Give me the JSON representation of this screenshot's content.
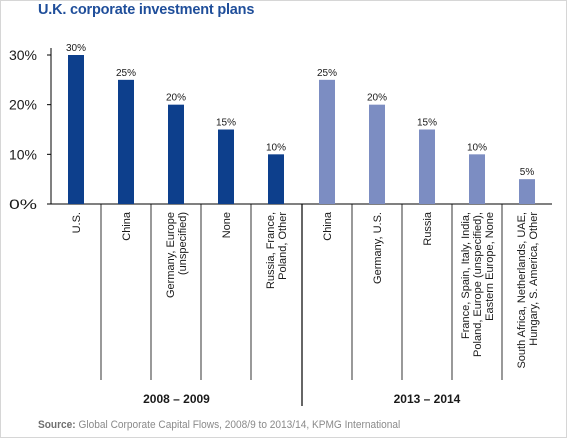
{
  "title": "U.K. corporate investment plans",
  "source": {
    "label": "Source:",
    "text": "Global Corporate Capital Flows, 2008/9 to 2013/14, KPMG International"
  },
  "colors": {
    "series_2008_2009": "#0d3f8c",
    "series_2013_2014": "#7c8dc2",
    "title": "#1f4e9a",
    "text": "#1a1a1a",
    "source": "#8a8a8a"
  },
  "chart_data": {
    "type": "bar",
    "ylim": [
      0,
      30
    ],
    "yticks": [
      "0%",
      "10%",
      "20%",
      "30%"
    ],
    "ytick_values": [
      0,
      10,
      20,
      30
    ],
    "grid": false,
    "groups": [
      {
        "name": "2008 – 2009",
        "color": "#0d3f8c",
        "bars": [
          {
            "category": [
              "U.S."
            ],
            "value": 30,
            "label": "30%"
          },
          {
            "category": [
              "China"
            ],
            "value": 25,
            "label": "25%"
          },
          {
            "category": [
              "Germany, Europe",
              "(unspecified)"
            ],
            "value": 20,
            "label": "20%"
          },
          {
            "category": [
              "None"
            ],
            "value": 15,
            "label": "15%"
          },
          {
            "category": [
              "Russia, France,",
              "Poland, Other"
            ],
            "value": 10,
            "label": "10%"
          }
        ]
      },
      {
        "name": "2013 – 2014",
        "color": "#7c8dc2",
        "bars": [
          {
            "category": [
              "China"
            ],
            "value": 25,
            "label": "25%"
          },
          {
            "category": [
              "Germany, U.S."
            ],
            "value": 20,
            "label": "20%"
          },
          {
            "category": [
              "Russia"
            ],
            "value": 15,
            "label": "15%"
          },
          {
            "category": [
              "France, Spain, Italy, India,",
              "Poland, Europe (unspecified),",
              "Eastern Europe, None"
            ],
            "value": 10,
            "label": "10%"
          },
          {
            "category": [
              "South Africa, Netherlands, UAE,",
              "Hungary, S. America, Other"
            ],
            "value": 5,
            "label": "5%"
          }
        ]
      }
    ]
  }
}
